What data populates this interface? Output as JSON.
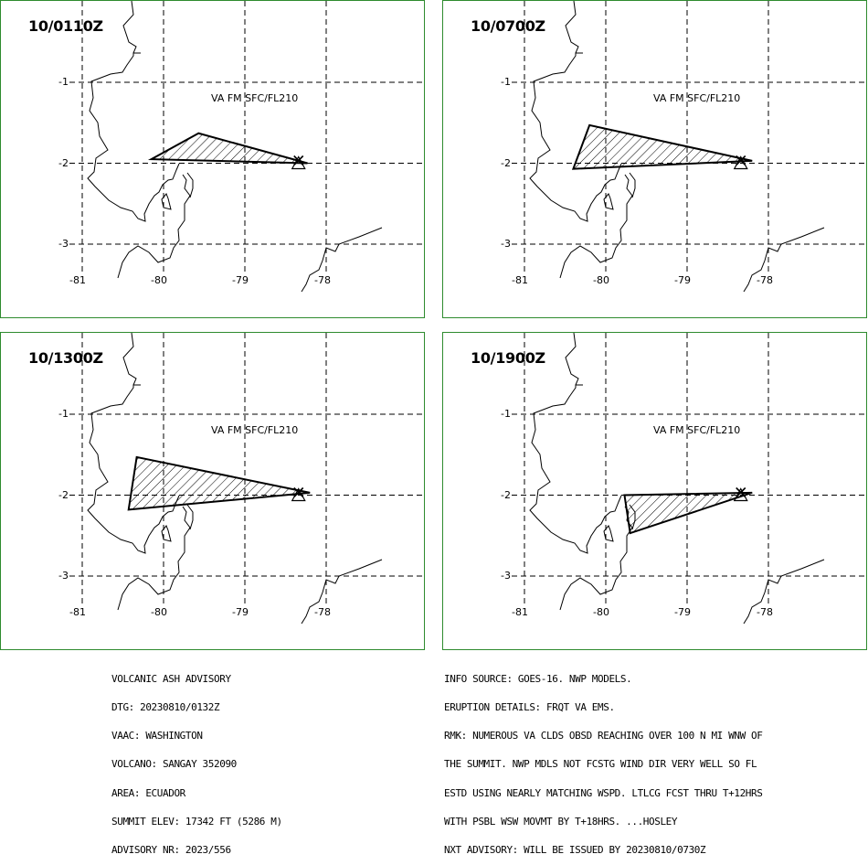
{
  "colors": {
    "panel_border": "#2e8b2e",
    "ash_fill_hatch": "#000000",
    "coastline": "#000000",
    "grid": "#000000"
  },
  "panels": [
    {
      "title": "10/0110Z",
      "level_label": "VA FM SFC/FL210",
      "polygon": [
        [
          -79.57,
          -1.63
        ],
        [
          -80.15,
          -1.95
        ],
        [
          -78.23,
          -2.0
        ]
      ]
    },
    {
      "title": "10/0700Z",
      "level_label": "VA FM SFC/FL210",
      "polygon": [
        [
          -80.2,
          -1.53
        ],
        [
          -80.4,
          -2.07
        ],
        [
          -78.2,
          -1.97
        ]
      ]
    },
    {
      "title": "10/1300Z",
      "level_label": "VA FM SFC/FL210",
      "polygon": [
        [
          -80.33,
          -1.53
        ],
        [
          -80.43,
          -2.18
        ],
        [
          -78.2,
          -1.97
        ]
      ]
    },
    {
      "title": "10/1900Z",
      "level_label": "VA FM SFC/FL210",
      "polygon": [
        [
          -79.77,
          -2.0
        ],
        [
          -79.7,
          -2.47
        ],
        [
          -78.2,
          -1.97
        ]
      ]
    }
  ],
  "volcano_location": {
    "lon": -78.34,
    "lat": -2.0,
    "symbol": "triangle-with-x-icon"
  },
  "axes": {
    "lat_ticks": [
      "-1",
      "-2",
      "-3"
    ],
    "lon_ticks": [
      "-81",
      "-80",
      "-79",
      "-78"
    ]
  },
  "advisory_left": [
    "VOLCANIC ASH ADVISORY",
    "DTG: 20230810/0132Z",
    "VAAC: WASHINGTON",
    "VOLCANO: SANGAY 352090",
    "AREA: ECUADOR",
    "SUMMIT ELEV: 17342 FT (5286 M)",
    "ADVISORY NR: 2023/556"
  ],
  "advisory_right": [
    "INFO SOURCE: GOES-16. NWP MODELS.",
    "ERUPTION DETAILS: FRQT VA EMS.",
    "RMK: NUMEROUS VA CLDS OBSD REACHING OVER 100 N MI WNW OF",
    "THE SUMMIT. NWP MDLS NOT FCSTG WIND DIR VERY WELL SO FL",
    "ESTD USING NEARLY MATCHING WSPD. LTLCG FCST THRU T+12HRS",
    "WITH PSBL WSW MOVMT BY T+18HRS. ...HOSLEY",
    "NXT ADVISORY: WILL BE ISSUED BY 20230810/0730Z"
  ]
}
